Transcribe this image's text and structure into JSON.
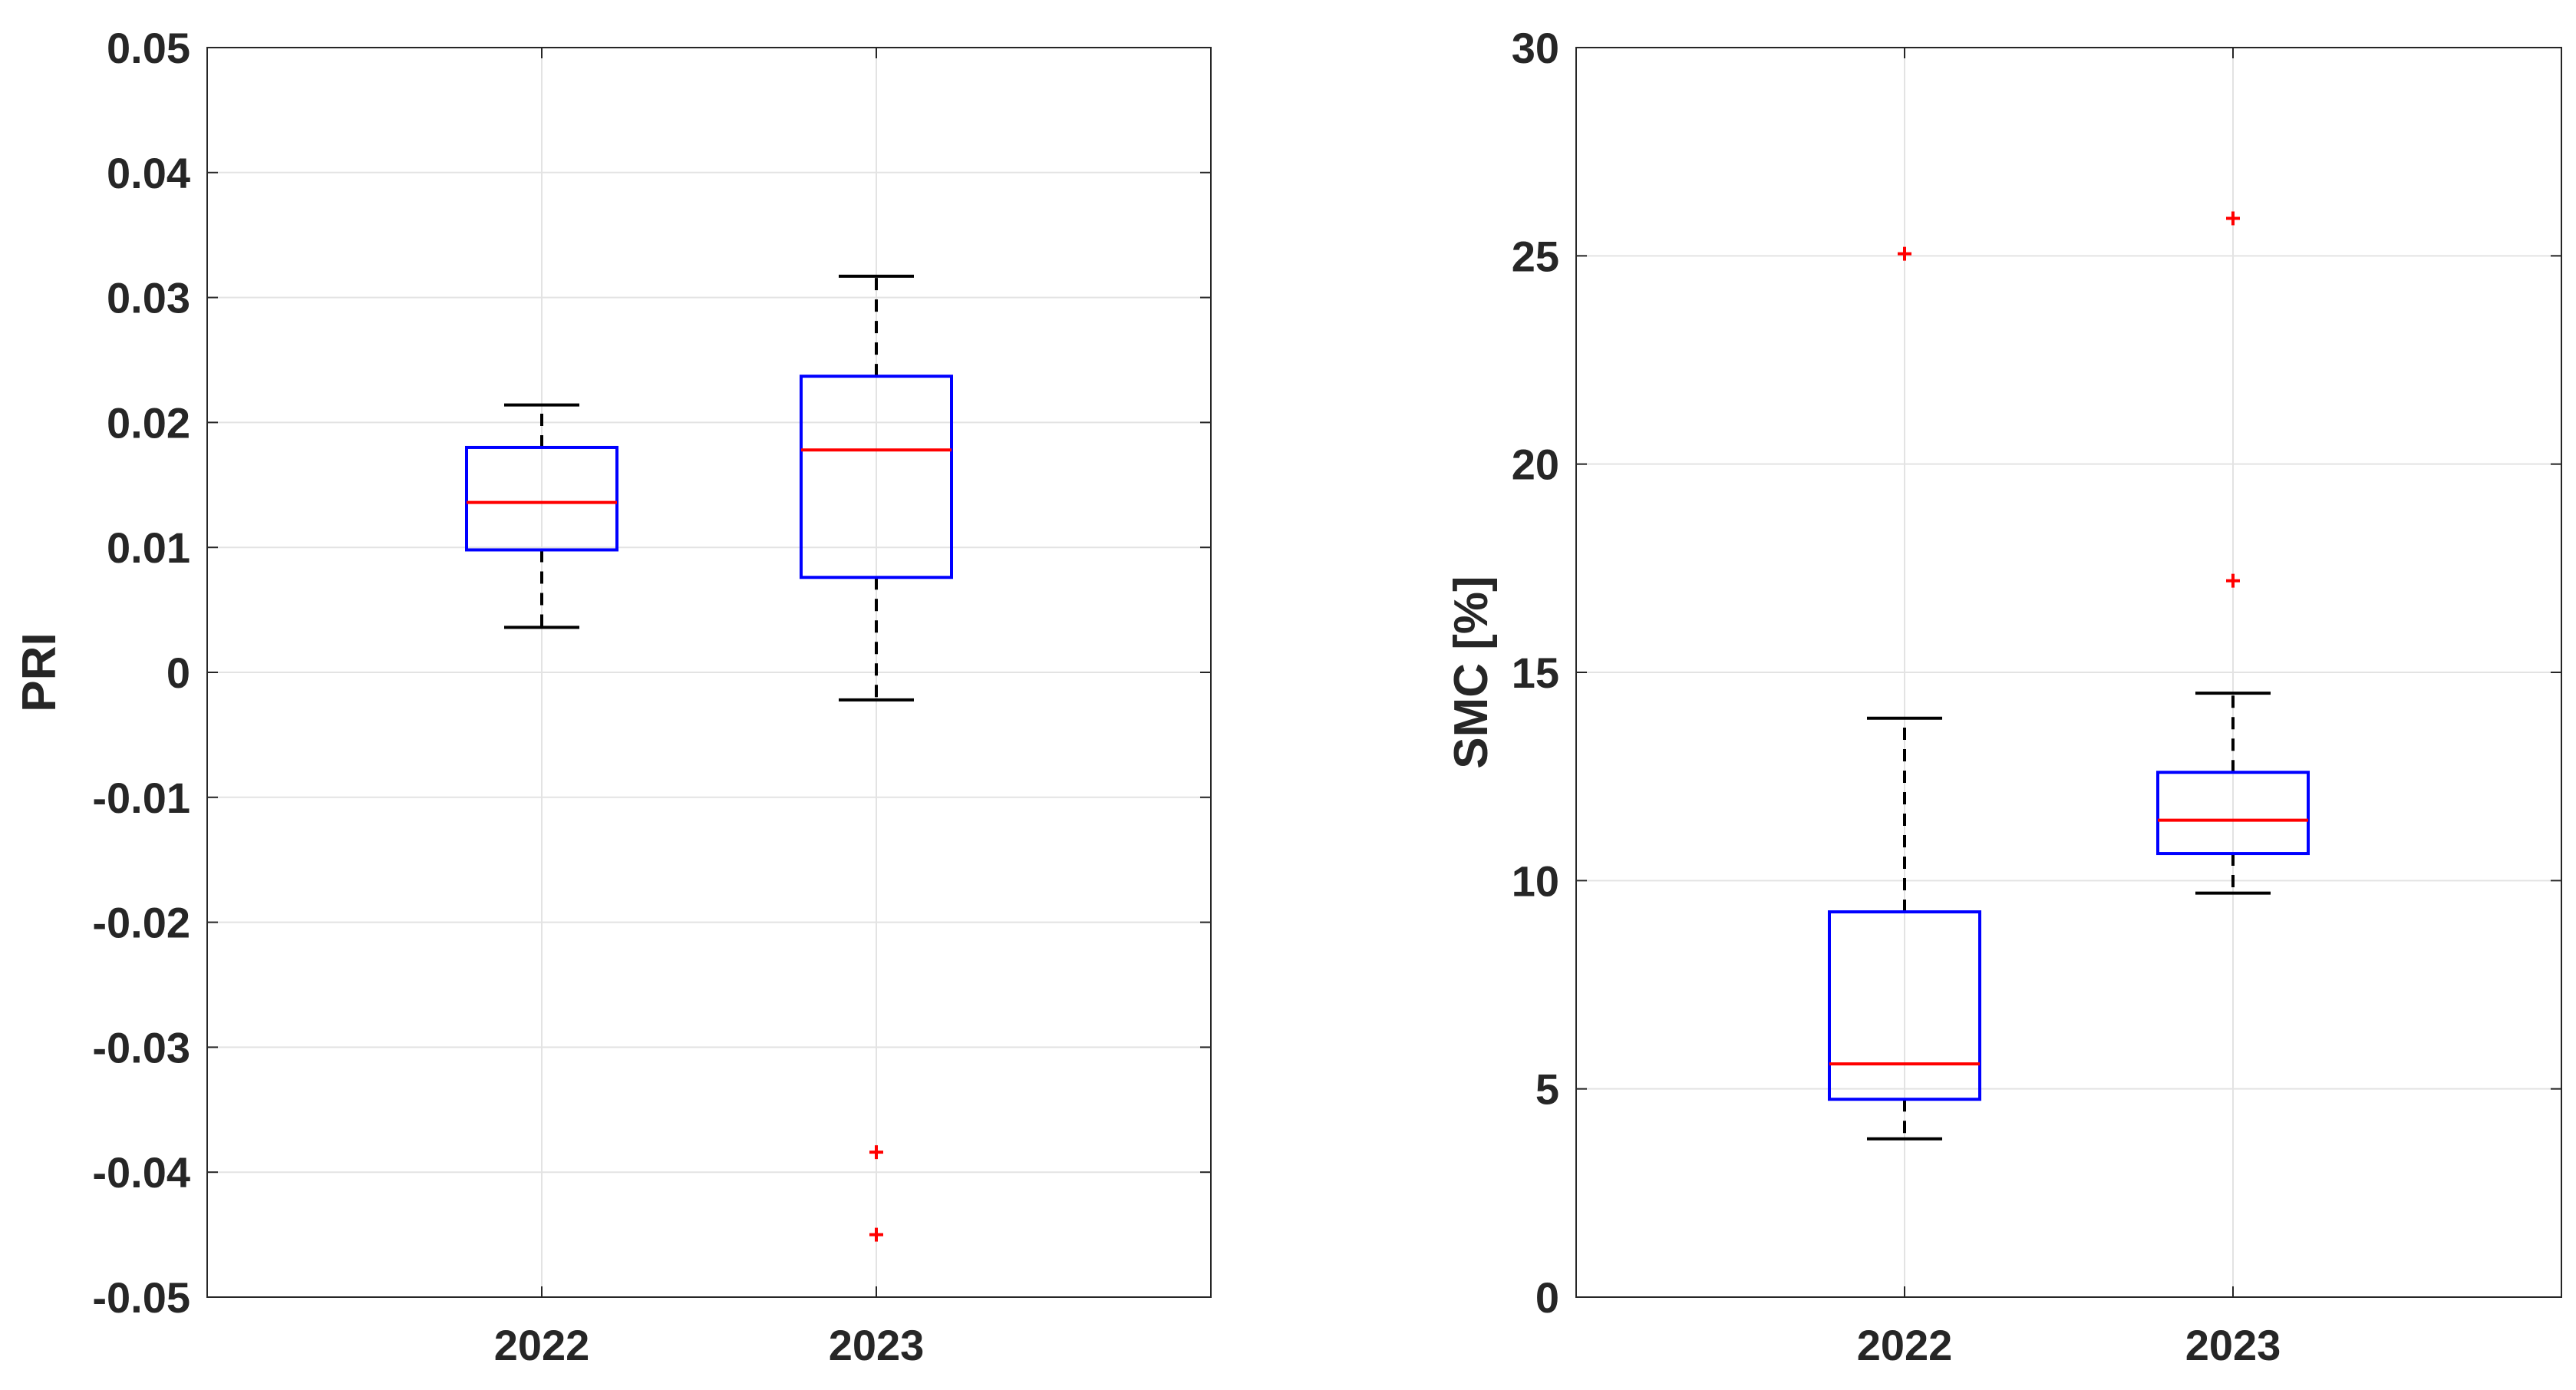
{
  "chart_data": [
    {
      "type": "boxplot",
      "title": "",
      "xlabel": "",
      "ylabel": "PRI",
      "ylim": [
        -0.05,
        0.05
      ],
      "yticks": [
        -0.05,
        -0.04,
        -0.03,
        -0.02,
        -0.01,
        0,
        0.01,
        0.02,
        0.03,
        0.04,
        0.05
      ],
      "ytick_labels": [
        "-0.05",
        "-0.04",
        "-0.03",
        "-0.02",
        "-0.01",
        "0",
        "0.01",
        "0.02",
        "0.03",
        "0.04",
        "0.05"
      ],
      "categories": [
        "2022",
        "2023"
      ],
      "grid": true,
      "boxes": [
        {
          "category": "2022",
          "whisker_low": 0.0036,
          "q1": 0.0098,
          "median": 0.0136,
          "q3": 0.018,
          "whisker_high": 0.0214,
          "outliers": []
        },
        {
          "category": "2023",
          "whisker_low": -0.0022,
          "q1": 0.0076,
          "median": 0.0178,
          "q3": 0.0237,
          "whisker_high": 0.0317,
          "outliers": [
            -0.0384,
            -0.045
          ]
        }
      ]
    },
    {
      "type": "boxplot",
      "title": "",
      "xlabel": "",
      "ylabel": "SMC [%]",
      "ylim": [
        0,
        30
      ],
      "yticks": [
        0,
        5,
        10,
        15,
        20,
        25,
        30
      ],
      "ytick_labels": [
        "0",
        "5",
        "10",
        "15",
        "20",
        "25",
        "30"
      ],
      "categories": [
        "2022",
        "2023"
      ],
      "grid": true,
      "boxes": [
        {
          "category": "2022",
          "whisker_low": 3.8,
          "q1": 4.75,
          "median": 5.6,
          "q3": 9.25,
          "whisker_high": 13.9,
          "outliers": [
            25.05
          ]
        },
        {
          "category": "2023",
          "whisker_low": 9.7,
          "q1": 10.65,
          "median": 11.45,
          "q3": 12.6,
          "whisker_high": 14.5,
          "outliers": [
            17.2,
            25.9
          ]
        }
      ]
    }
  ],
  "colors": {
    "box": "#0000ff",
    "median": "#ff0000",
    "outlier": "#ff0000",
    "whisker": "#000000",
    "grid": "#e3e3e3",
    "axis": "#262626"
  }
}
